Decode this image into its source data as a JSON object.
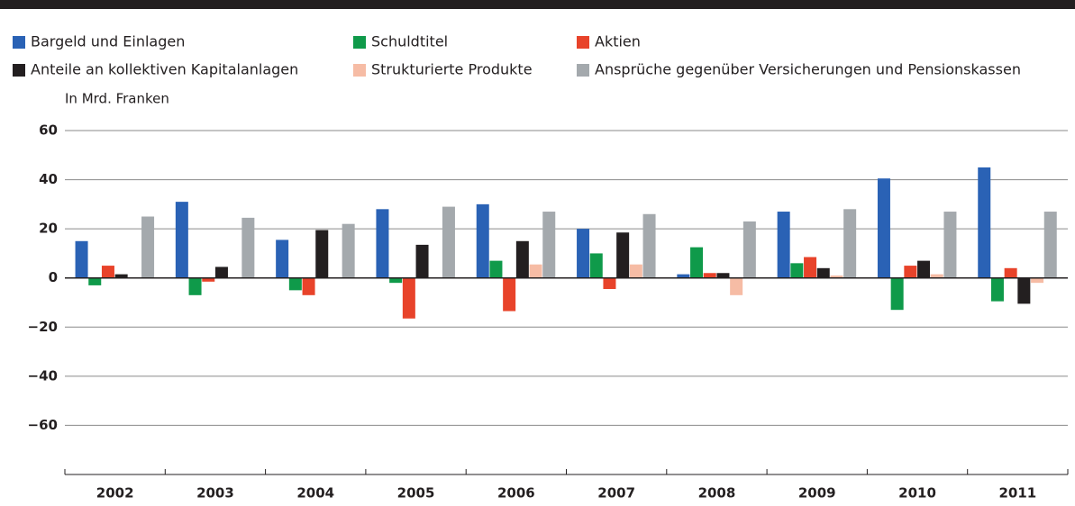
{
  "chart_data": {
    "type": "bar",
    "ylabel": "In Mrd. Franken",
    "categories": [
      "2002",
      "2003",
      "2004",
      "2005",
      "2006",
      "2007",
      "2008",
      "2009",
      "2010",
      "2011"
    ],
    "series": [
      {
        "name": "Bargeld und Einlagen",
        "color": "#2a62b5",
        "values": [
          15,
          31,
          15.5,
          28,
          30,
          20,
          1.5,
          27,
          40.5,
          45
        ]
      },
      {
        "name": "Schuldtitel",
        "color": "#0f9a4a",
        "values": [
          -3,
          -7,
          -5,
          -2,
          7,
          10,
          12.5,
          6,
          -13,
          -9.5
        ]
      },
      {
        "name": "Aktien",
        "color": "#e8432a",
        "values": [
          5,
          -1.5,
          -7,
          -16.5,
          -13.5,
          -4.5,
          2,
          8.5,
          5,
          4
        ]
      },
      {
        "name": "Anteile an kollektiven Kapitalanlagen",
        "color": "#231f20",
        "values": [
          1.5,
          4.5,
          19.5,
          13.5,
          15,
          18.5,
          2,
          4,
          7,
          -10.5
        ]
      },
      {
        "name": "Strukturierte Produkte",
        "color": "#f6bca5",
        "values": [
          0,
          0,
          0,
          0,
          5.5,
          5.5,
          -7,
          1,
          1.5,
          -2
        ]
      },
      {
        "name": "Ansprüche gegenüber Versicherungen und Pensionskassen",
        "color": "#a4a9ad",
        "values": [
          25,
          24.5,
          22,
          29,
          27,
          26,
          23,
          28,
          27,
          27
        ]
      }
    ],
    "ylim": [
      -80,
      60
    ],
    "yticks": [
      {
        "value": -60,
        "label": "−60"
      },
      {
        "value": -40,
        "label": "−40"
      },
      {
        "value": -20,
        "label": "−20"
      },
      0,
      20,
      40,
      60
    ],
    "grid": true
  }
}
